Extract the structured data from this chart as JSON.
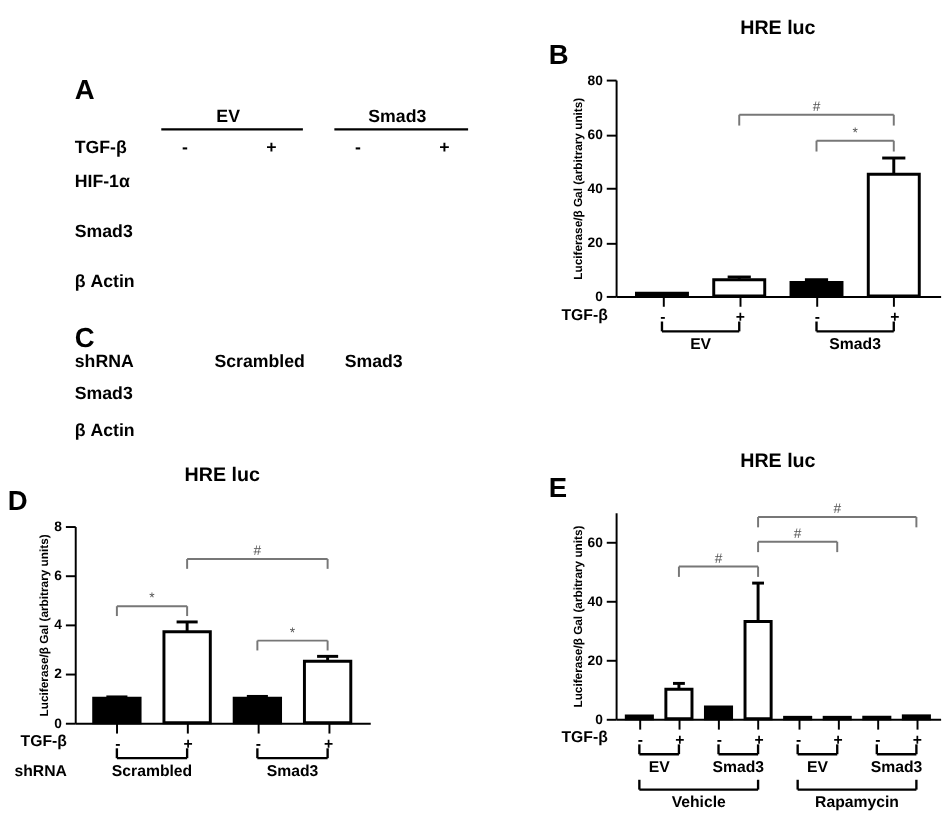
{
  "chart_data": [
    {
      "type": "other",
      "annotations": [
        "A",
        "EV",
        "Smad3",
        "TGF-β",
        "-",
        "+",
        "-",
        "+",
        "HIF-1α",
        "Smad3",
        "β Actin"
      ]
    },
    {
      "type": "bar",
      "title": "HRE luc",
      "ylabel": "Luciferase/β Gal (arbitrary units)",
      "xlabel": "TGF-β",
      "categories": [
        "-",
        "+",
        "-",
        "+"
      ],
      "values": [
        1,
        6,
        5,
        45
      ],
      "colors": [
        "#000000",
        "#ffffff",
        "#000000",
        "#ffffff"
      ],
      "errors": [
        null,
        [
          6,
          7
        ],
        [
          5,
          6
        ],
        [
          45,
          51
        ]
      ],
      "ylim": [
        0,
        80
      ],
      "yticks": [
        0,
        20,
        40,
        60,
        80
      ],
      "grid": false,
      "annotations": [
        "B",
        "#",
        "*",
        "EV",
        "Smad3"
      ]
    },
    {
      "type": "other",
      "annotations": [
        "C",
        "shRNA",
        "Scrambled",
        "Smad3",
        "Smad3",
        "β Actin"
      ]
    },
    {
      "type": "bar",
      "title": "HRE luc",
      "ylabel": "Luciferase/β Gal (arbitrary units)",
      "xlabel": "TGF-β",
      "categories": [
        "-",
        "+",
        "-",
        "+"
      ],
      "values": [
        1,
        3.7,
        1,
        2.5
      ],
      "colors": [
        "#000000",
        "#ffffff",
        "#000000",
        "#ffffff"
      ],
      "errors": [
        [
          1,
          1.05
        ],
        [
          3.7,
          4.1
        ],
        [
          1,
          1.07
        ],
        [
          2.5,
          2.7
        ]
      ],
      "ylim": [
        0,
        8
      ],
      "yticks": [
        0,
        2,
        4,
        6,
        8
      ],
      "grid": false,
      "annotations": [
        "D",
        "*",
        "#",
        "*",
        "shRNA",
        "Scrambled",
        "Smad3"
      ]
    },
    {
      "type": "bar",
      "title": "HRE luc",
      "ylabel": "Luciferase/β Gal (arbitrary units)",
      "xlabel": "TGF-β",
      "categories": [
        "-",
        "+",
        "-",
        "+",
        "-",
        "+",
        "-",
        "+"
      ],
      "values": [
        1,
        10,
        4,
        33,
        0.5,
        0.5,
        0.5,
        1
      ],
      "colors": [
        "#000000",
        "#ffffff",
        "#000000",
        "#ffffff",
        "#000000",
        "#ffffff",
        "#000000",
        "#ffffff"
      ],
      "errors": [
        null,
        [
          10,
          12
        ],
        null,
        [
          33,
          46
        ],
        null,
        null,
        null,
        null
      ],
      "ylim": [
        0,
        70
      ],
      "yticks": [
        0,
        20,
        40,
        60
      ],
      "grid": false,
      "annotations": [
        "E",
        "#",
        "#",
        "#",
        "EV",
        "Smad3",
        "EV",
        "Smad3",
        "Vehicle",
        "Rapamycin"
      ]
    }
  ]
}
